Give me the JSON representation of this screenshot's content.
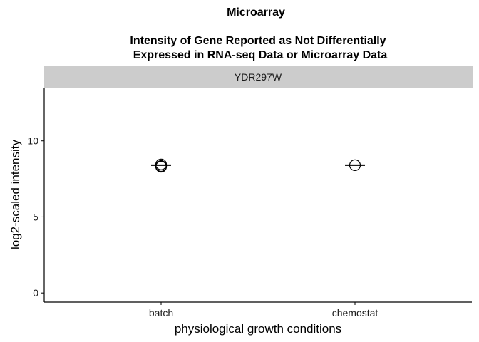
{
  "chart_data": {
    "type": "scatter",
    "title_line1": "Microarray",
    "title_line2": "Intensity of Gene Reported as Not Differentially",
    "title_line3": "Expressed in RNA-seq Data or Microarray Data",
    "facet_label": "YDR297W",
    "xlabel": "physiological growth conditions",
    "ylabel": "log2-scaled intensity",
    "categories": [
      "batch",
      "chemostat"
    ],
    "ylim": [
      -0.6,
      13.5
    ],
    "yticks": [
      0,
      5,
      10
    ],
    "series": [
      {
        "category": "batch",
        "points": [
          8.35,
          8.45,
          8.3
        ]
      },
      {
        "category": "chemostat",
        "points": [
          8.4
        ]
      }
    ],
    "medians": [
      8.4,
      8.4
    ],
    "grid": false,
    "colors": {
      "strip_background": "#cccccc",
      "points": "#000000",
      "axis": "#000000"
    }
  }
}
